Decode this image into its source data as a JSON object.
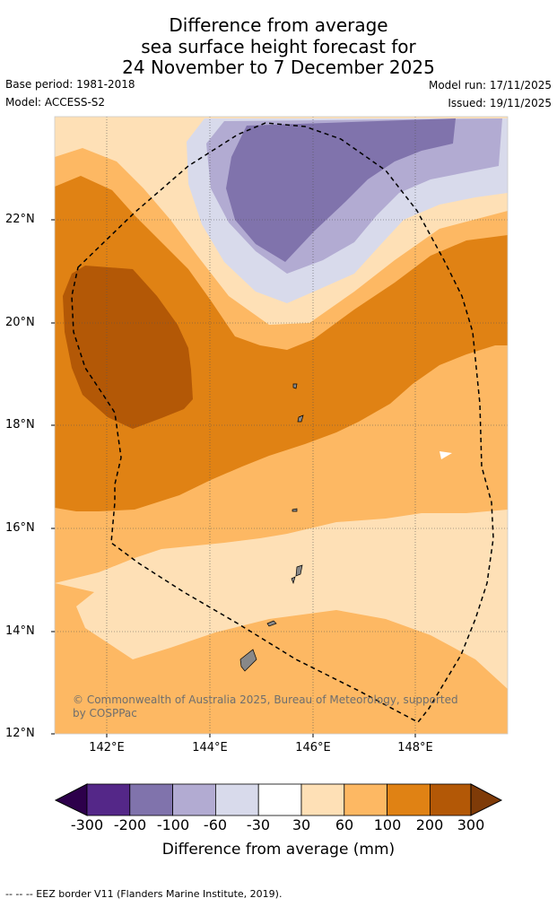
{
  "title": {
    "line1": "Difference from average",
    "line2": "sea surface height forecast for",
    "line3": "24 November to 7 December 2025"
  },
  "meta": {
    "base_period": "Base period: 1981-2018",
    "model": "Model: ACCESS-S2",
    "model_run": "Model run: 17/11/2025",
    "issued": "Issued: 19/11/2025"
  },
  "map": {
    "lat_labels": [
      "22°N",
      "20°N",
      "18°N",
      "16°N",
      "14°N",
      "12°N"
    ],
    "lon_labels": [
      "142°E",
      "144°E",
      "146°E",
      "148°E"
    ],
    "copyright_line1": "© Commonwealth of Australia 2025, Bureau of Meteorology, supported",
    "copyright_line2": "by COSPPac"
  },
  "colorbar": {
    "ticks": [
      "-300",
      "-200",
      "-100",
      "-60",
      "-30",
      "30",
      "60",
      "100",
      "200",
      "300"
    ],
    "colors": [
      "#2d004b",
      "#542788",
      "#8073ac",
      "#b2abd2",
      "#d8daeb",
      "#ffffff",
      "#fee0b6",
      "#fdb863",
      "#e08214",
      "#b35806",
      "#7f3b08"
    ],
    "label": "Difference from average (mm)"
  },
  "footer": "--  --  -- EEZ border V11 (Flanders Marine Institute, 2019)."
}
